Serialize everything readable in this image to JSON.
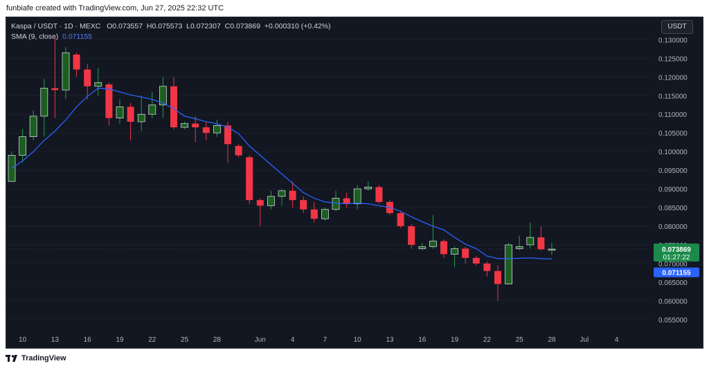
{
  "header": {
    "credit": "funbiafe created with TradingView.com, Jun 27, 2025 22:32 UTC"
  },
  "legend": {
    "title": "Kaspa / USDT · 1D · MEXC",
    "open_label": "O",
    "open": "0.073557",
    "high_label": "H",
    "high": "0.075573",
    "low_label": "L",
    "low": "0.072307",
    "close_label": "C",
    "close": "0.073869",
    "change": "+0.000310 (+0.42%)",
    "sma_label": "SMA (9, close)",
    "sma_value": "0.071155"
  },
  "currency_button": "USDT",
  "price_badges": {
    "last_price": "0.073869",
    "countdown": "01:27:22",
    "sma_price": "0.071155"
  },
  "footer": {
    "brand": "TradingView"
  },
  "colors": {
    "up": "#22a046",
    "down": "#f23645",
    "sma": "#2962ff",
    "background": "#131722",
    "text": "#b2b5be"
  },
  "chart_data": {
    "type": "candlestick",
    "symbol": "Kaspa / USDT",
    "interval": "1D",
    "exchange": "MEXC",
    "ylim": [
      0.052,
      0.136
    ],
    "y_ticks": [
      "0.055000",
      "0.060000",
      "0.065000",
      "0.070000",
      "0.075000",
      "0.080000",
      "0.085000",
      "0.090000",
      "0.095000",
      "0.100000",
      "0.105000",
      "0.110000",
      "0.115000",
      "0.120000",
      "0.125000",
      "0.130000"
    ],
    "x_ticks": [
      {
        "label": "10",
        "date": "2025-05-10"
      },
      {
        "label": "13",
        "date": "2025-05-13"
      },
      {
        "label": "16",
        "date": "2025-05-16"
      },
      {
        "label": "19",
        "date": "2025-05-19"
      },
      {
        "label": "22",
        "date": "2025-05-22"
      },
      {
        "label": "25",
        "date": "2025-05-25"
      },
      {
        "label": "28",
        "date": "2025-05-28"
      },
      {
        "label": "Jun",
        "date": "2025-06-01"
      },
      {
        "label": "4",
        "date": "2025-06-04"
      },
      {
        "label": "7",
        "date": "2025-06-07"
      },
      {
        "label": "10",
        "date": "2025-06-10"
      },
      {
        "label": "13",
        "date": "2025-06-13"
      },
      {
        "label": "16",
        "date": "2025-06-16"
      },
      {
        "label": "19",
        "date": "2025-06-19"
      },
      {
        "label": "22",
        "date": "2025-06-22"
      },
      {
        "label": "25",
        "date": "2025-06-25"
      },
      {
        "label": "28",
        "date": "2025-06-28"
      },
      {
        "label": "Jul",
        "date": "2025-07-01"
      },
      {
        "label": "4",
        "date": "2025-07-04"
      }
    ],
    "candles": [
      {
        "date": "2025-05-09",
        "o": 0.092,
        "h": 0.1,
        "l": 0.092,
        "c": 0.099
      },
      {
        "date": "2025-05-10",
        "o": 0.099,
        "h": 0.106,
        "l": 0.097,
        "c": 0.104
      },
      {
        "date": "2025-05-11",
        "o": 0.104,
        "h": 0.111,
        "l": 0.103,
        "c": 0.1095
      },
      {
        "date": "2025-05-12",
        "o": 0.1095,
        "h": 0.1195,
        "l": 0.104,
        "c": 0.117
      },
      {
        "date": "2025-05-13",
        "o": 0.117,
        "h": 0.131,
        "l": 0.109,
        "c": 0.1165
      },
      {
        "date": "2025-05-14",
        "o": 0.1165,
        "h": 0.128,
        "l": 0.114,
        "c": 0.1265
      },
      {
        "date": "2025-05-15",
        "o": 0.126,
        "h": 0.1265,
        "l": 0.12,
        "c": 0.122
      },
      {
        "date": "2025-05-16",
        "o": 0.122,
        "h": 0.1235,
        "l": 0.114,
        "c": 0.1175
      },
      {
        "date": "2025-05-17",
        "o": 0.1175,
        "h": 0.1225,
        "l": 0.115,
        "c": 0.1185
      },
      {
        "date": "2025-05-18",
        "o": 0.118,
        "h": 0.1185,
        "l": 0.107,
        "c": 0.109
      },
      {
        "date": "2025-05-19",
        "o": 0.109,
        "h": 0.114,
        "l": 0.1075,
        "c": 0.112
      },
      {
        "date": "2025-05-20",
        "o": 0.112,
        "h": 0.113,
        "l": 0.103,
        "c": 0.108
      },
      {
        "date": "2025-05-21",
        "o": 0.108,
        "h": 0.115,
        "l": 0.1055,
        "c": 0.11
      },
      {
        "date": "2025-05-22",
        "o": 0.11,
        "h": 0.116,
        "l": 0.109,
        "c": 0.1125
      },
      {
        "date": "2025-05-23",
        "o": 0.1125,
        "h": 0.12,
        "l": 0.109,
        "c": 0.1175
      },
      {
        "date": "2025-05-24",
        "o": 0.1175,
        "h": 0.12,
        "l": 0.106,
        "c": 0.1065
      },
      {
        "date": "2025-05-25",
        "o": 0.1065,
        "h": 0.108,
        "l": 0.106,
        "c": 0.1075
      },
      {
        "date": "2025-05-26",
        "o": 0.1075,
        "h": 0.1095,
        "l": 0.1025,
        "c": 0.1065
      },
      {
        "date": "2025-05-27",
        "o": 0.1065,
        "h": 0.108,
        "l": 0.103,
        "c": 0.105
      },
      {
        "date": "2025-05-28",
        "o": 0.105,
        "h": 0.1085,
        "l": 0.104,
        "c": 0.107
      },
      {
        "date": "2025-05-29",
        "o": 0.107,
        "h": 0.108,
        "l": 0.097,
        "c": 0.102
      },
      {
        "date": "2025-05-30",
        "o": 0.1015,
        "h": 0.102,
        "l": 0.0985,
        "c": 0.099
      },
      {
        "date": "2025-05-31",
        "o": 0.0985,
        "h": 0.099,
        "l": 0.086,
        "c": 0.087
      },
      {
        "date": "2025-06-01",
        "o": 0.087,
        "h": 0.0875,
        "l": 0.08,
        "c": 0.0855
      },
      {
        "date": "2025-06-02",
        "o": 0.0855,
        "h": 0.0895,
        "l": 0.0845,
        "c": 0.088
      },
      {
        "date": "2025-06-03",
        "o": 0.088,
        "h": 0.09,
        "l": 0.0855,
        "c": 0.0895
      },
      {
        "date": "2025-06-04",
        "o": 0.0895,
        "h": 0.092,
        "l": 0.085,
        "c": 0.087
      },
      {
        "date": "2025-06-05",
        "o": 0.087,
        "h": 0.088,
        "l": 0.0835,
        "c": 0.0845
      },
      {
        "date": "2025-06-06",
        "o": 0.0845,
        "h": 0.0865,
        "l": 0.081,
        "c": 0.082
      },
      {
        "date": "2025-06-07",
        "o": 0.082,
        "h": 0.085,
        "l": 0.0815,
        "c": 0.0845
      },
      {
        "date": "2025-06-08",
        "o": 0.0845,
        "h": 0.0895,
        "l": 0.084,
        "c": 0.0875
      },
      {
        "date": "2025-06-09",
        "o": 0.0875,
        "h": 0.089,
        "l": 0.085,
        "c": 0.086
      },
      {
        "date": "2025-06-10",
        "o": 0.086,
        "h": 0.091,
        "l": 0.0845,
        "c": 0.09
      },
      {
        "date": "2025-06-11",
        "o": 0.09,
        "h": 0.092,
        "l": 0.0895,
        "c": 0.0905
      },
      {
        "date": "2025-06-12",
        "o": 0.0905,
        "h": 0.091,
        "l": 0.086,
        "c": 0.0865
      },
      {
        "date": "2025-06-13",
        "o": 0.0865,
        "h": 0.087,
        "l": 0.083,
        "c": 0.0835
      },
      {
        "date": "2025-06-14",
        "o": 0.0835,
        "h": 0.084,
        "l": 0.0795,
        "c": 0.08
      },
      {
        "date": "2025-06-15",
        "o": 0.08,
        "h": 0.0805,
        "l": 0.074,
        "c": 0.075
      },
      {
        "date": "2025-06-16",
        "o": 0.074,
        "h": 0.0755,
        "l": 0.0735,
        "c": 0.0745
      },
      {
        "date": "2025-06-17",
        "o": 0.0745,
        "h": 0.083,
        "l": 0.074,
        "c": 0.076
      },
      {
        "date": "2025-06-18",
        "o": 0.076,
        "h": 0.0765,
        "l": 0.0715,
        "c": 0.0725
      },
      {
        "date": "2025-06-19",
        "o": 0.0725,
        "h": 0.0745,
        "l": 0.069,
        "c": 0.074
      },
      {
        "date": "2025-06-20",
        "o": 0.074,
        "h": 0.0745,
        "l": 0.07,
        "c": 0.0715
      },
      {
        "date": "2025-06-21",
        "o": 0.0715,
        "h": 0.072,
        "l": 0.0695,
        "c": 0.07
      },
      {
        "date": "2025-06-22",
        "o": 0.07,
        "h": 0.0705,
        "l": 0.0665,
        "c": 0.068
      },
      {
        "date": "2025-06-23",
        "o": 0.068,
        "h": 0.0695,
        "l": 0.06,
        "c": 0.0645
      },
      {
        "date": "2025-06-24",
        "o": 0.0645,
        "h": 0.0755,
        "l": 0.0645,
        "c": 0.075
      },
      {
        "date": "2025-06-25",
        "o": 0.074,
        "h": 0.0775,
        "l": 0.0735,
        "c": 0.0745
      },
      {
        "date": "2025-06-26",
        "o": 0.075,
        "h": 0.081,
        "l": 0.074,
        "c": 0.077
      },
      {
        "date": "2025-06-27",
        "o": 0.077,
        "h": 0.08,
        "l": 0.0735,
        "c": 0.0738
      },
      {
        "date": "2025-06-28",
        "o": 0.073557,
        "h": 0.075573,
        "l": 0.072307,
        "c": 0.073869
      }
    ],
    "sma": {
      "name": "SMA (9, close)",
      "values": [
        0.0955,
        0.0975,
        0.1,
        0.103,
        0.1055,
        0.1085,
        0.112,
        0.1148,
        0.117,
        0.1168,
        0.116,
        0.1152,
        0.1146,
        0.114,
        0.113,
        0.1115,
        0.1095,
        0.1088,
        0.108,
        0.1075,
        0.1065,
        0.1048,
        0.1015,
        0.099,
        0.0965,
        0.094,
        0.0915,
        0.089,
        0.0875,
        0.0865,
        0.0862,
        0.086,
        0.0862,
        0.086,
        0.0855,
        0.085,
        0.084,
        0.0825,
        0.0812,
        0.08,
        0.079,
        0.077,
        0.0752,
        0.074,
        0.072,
        0.0713,
        0.0713,
        0.0714,
        0.0715,
        0.0713,
        0.0712
      ]
    }
  }
}
